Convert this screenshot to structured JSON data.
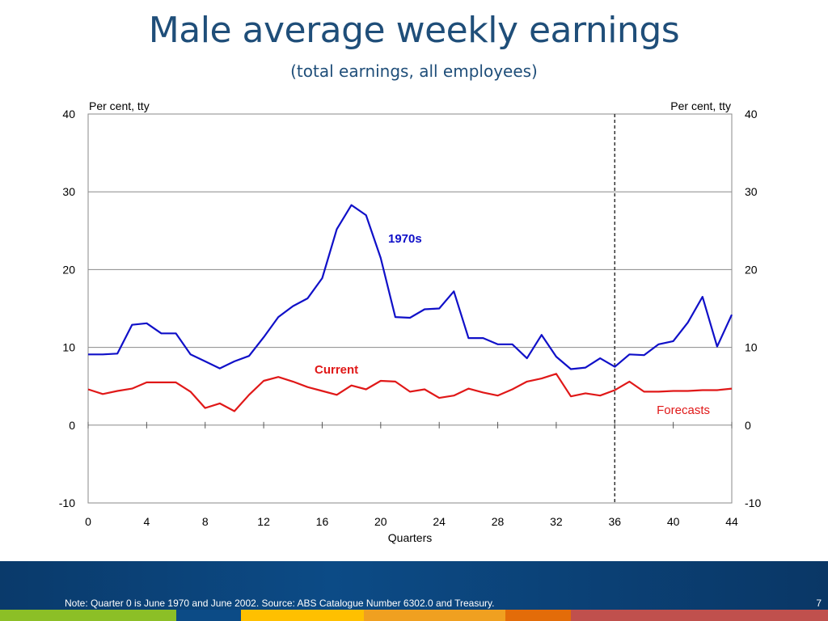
{
  "page": {
    "title": "Male average weekly earnings",
    "subtitle": "(total earnings, all employees)",
    "note": "Note: Quarter 0 is June 1970 and June 2002. Source: ABS Catalogue Number 6302.0 and Treasury.",
    "page_number": "7"
  },
  "colors": {
    "series_1970s": "#1010c8",
    "series_current": "#e01818",
    "title": "#1f4e79",
    "footer_strip": [
      "#8cbf26",
      "#0c4b86",
      "#ffc000",
      "#f0a020",
      "#e36c09",
      "#c0504d"
    ]
  },
  "chart_data": {
    "type": "line",
    "xlabel": "Quarters",
    "ylabel_left": "Per cent, tty",
    "ylabel_right": "Per cent, tty",
    "xlim": [
      0,
      44
    ],
    "ylim": [
      -10,
      40
    ],
    "x_ticks": [
      0,
      4,
      8,
      12,
      16,
      20,
      24,
      28,
      32,
      36,
      40,
      44
    ],
    "y_ticks": [
      -10,
      0,
      10,
      20,
      30,
      40
    ],
    "grid": "horizontal",
    "forecast_line_x": 36,
    "annotations": {
      "series_1970s": "1970s",
      "series_current": "Current",
      "forecasts": "Forecasts"
    },
    "series": [
      {
        "name": "1970s",
        "x": [
          0,
          1,
          2,
          3,
          4,
          5,
          6,
          7,
          8,
          9,
          10,
          11,
          12,
          13,
          14,
          15,
          16,
          17,
          18,
          19,
          20,
          21,
          22,
          23,
          24,
          25,
          26,
          27,
          28,
          29,
          30,
          31,
          32,
          33,
          34,
          35,
          36,
          37,
          38,
          39,
          40,
          41,
          42,
          43,
          44
        ],
        "values": [
          9.1,
          9.1,
          9.2,
          12.9,
          13.1,
          11.8,
          11.8,
          9.1,
          8.2,
          7.3,
          8.2,
          8.9,
          11.3,
          13.9,
          15.3,
          16.3,
          18.9,
          25.2,
          28.3,
          27.0,
          21.5,
          13.9,
          13.8,
          14.9,
          15.0,
          17.2,
          11.2,
          11.2,
          10.4,
          10.4,
          8.6,
          11.6,
          8.8,
          7.2,
          7.4,
          8.6,
          7.5,
          9.1,
          9.0,
          10.4,
          10.8,
          13.2,
          16.5,
          10.1,
          14.2
        ]
      },
      {
        "name": "Current",
        "x": [
          0,
          1,
          2,
          3,
          4,
          5,
          6,
          7,
          8,
          9,
          10,
          11,
          12,
          13,
          14,
          15,
          16,
          17,
          18,
          19,
          20,
          21,
          22,
          23,
          24,
          25,
          26,
          27,
          28,
          29,
          30,
          31,
          32,
          33,
          34,
          35,
          36,
          37,
          38,
          39,
          40,
          41,
          42,
          43,
          44
        ],
        "values": [
          4.6,
          4.0,
          4.4,
          4.7,
          5.5,
          5.5,
          5.5,
          4.3,
          2.2,
          2.8,
          1.8,
          3.9,
          5.7,
          6.2,
          5.6,
          4.9,
          4.4,
          3.9,
          5.1,
          4.6,
          5.7,
          5.6,
          4.3,
          4.6,
          3.5,
          3.8,
          4.7,
          4.2,
          3.8,
          4.6,
          5.6,
          6.0,
          6.6,
          3.7,
          4.1,
          3.8,
          4.5,
          5.6,
          4.3,
          4.3,
          4.4,
          4.4,
          4.5,
          4.5,
          4.7
        ]
      }
    ]
  }
}
